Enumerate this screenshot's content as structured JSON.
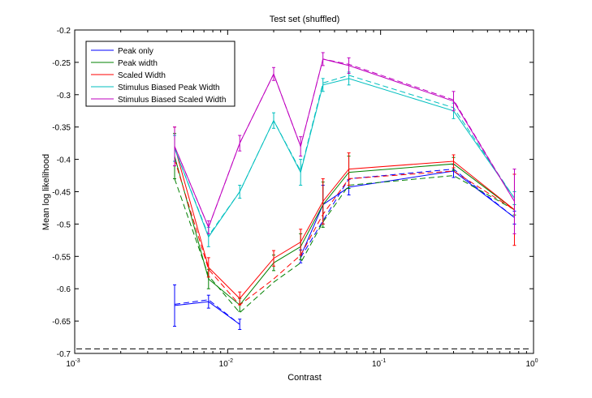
{
  "chart_data": {
    "type": "line",
    "title": "Test set (shuffled)",
    "xlabel": "Contrast",
    "ylabel": "Mean log likelihood",
    "xscale": "log",
    "xlim": [
      0.001,
      1
    ],
    "ylim": [
      -0.7,
      -0.2
    ],
    "xticks": [
      {
        "value": 0.001,
        "base": "10",
        "exp": "-3"
      },
      {
        "value": 0.01,
        "base": "10",
        "exp": "-2"
      },
      {
        "value": 0.1,
        "base": "10",
        "exp": "-1"
      },
      {
        "value": 1,
        "base": "10",
        "exp": "0"
      }
    ],
    "yticks": [
      "-0.2",
      "-0.25",
      "-0.3",
      "-0.35",
      "-0.4",
      "-0.45",
      "-0.5",
      "-0.55",
      "-0.6",
      "-0.65",
      "-0.7"
    ],
    "grid": false,
    "legend_position": "top-left",
    "x": [
      0.0045,
      0.0075,
      0.012,
      0.02,
      0.03,
      0.042,
      0.062,
      0.3,
      0.75
    ],
    "baseline": {
      "value": -0.693,
      "style": "dashed",
      "color": "#000000"
    },
    "series": [
      {
        "name": "Peak only",
        "color": "#0000ff",
        "values": [
          -0.626,
          -0.62,
          -0.655,
          null,
          -0.55,
          -0.47,
          -0.443,
          -0.418,
          -0.49
        ],
        "dashed": [
          -0.624,
          -0.617,
          -0.655,
          null,
          -0.552,
          -0.495,
          -0.43,
          -0.415,
          -0.49
        ],
        "error": [
          0.032,
          0.01,
          0.008,
          null,
          0.01,
          0.03,
          0.012,
          0.01,
          0.01
        ]
      },
      {
        "name": "Peak width",
        "color": "#008000",
        "values": [
          -0.395,
          -0.585,
          -0.625,
          -0.56,
          -0.535,
          -0.47,
          -0.42,
          -0.407,
          -0.478
        ],
        "dashed": [
          -0.43,
          -0.58,
          -0.637,
          -0.59,
          -0.56,
          -0.497,
          -0.44,
          -0.425,
          -0.478
        ],
        "error": [
          0.035,
          0.015,
          0.01,
          0.012,
          0.02,
          0.035,
          0.025,
          0.01,
          0.008
        ]
      },
      {
        "name": "Scaled Width",
        "color": "#ff0000",
        "values": [
          -0.38,
          -0.567,
          -0.615,
          -0.553,
          -0.528,
          -0.465,
          -0.415,
          -0.403,
          -0.478
        ],
        "dashed": [
          -0.4,
          -0.57,
          -0.625,
          -0.585,
          -0.548,
          -0.485,
          -0.43,
          -0.418,
          -0.478
        ],
        "error": [
          0.03,
          0.015,
          0.01,
          0.012,
          0.02,
          0.035,
          0.025,
          0.01,
          0.055
        ]
      },
      {
        "name": "Stimulus Biased Peak Width",
        "color": "#00bfbf",
        "values": [
          -0.383,
          -0.52,
          -0.45,
          -0.34,
          -0.42,
          -0.285,
          -0.275,
          -0.325,
          -0.46
        ],
        "dashed": [
          -0.383,
          -0.518,
          -0.45,
          -0.34,
          -0.418,
          -0.282,
          -0.27,
          -0.32,
          -0.46
        ],
        "error": [
          0.02,
          0.015,
          0.01,
          0.012,
          0.02,
          0.01,
          0.01,
          0.012,
          0.01
        ]
      },
      {
        "name": "Stimulus Biased Scaled Width",
        "color": "#bf00bf",
        "values": [
          -0.38,
          -0.505,
          -0.375,
          -0.268,
          -0.38,
          -0.245,
          -0.255,
          -0.31,
          -0.465
        ],
        "dashed": [
          -0.38,
          -0.505,
          -0.375,
          -0.268,
          -0.38,
          -0.245,
          -0.253,
          -0.308,
          -0.465
        ],
        "error": [
          0.03,
          0.01,
          0.012,
          0.01,
          0.015,
          0.01,
          0.012,
          0.015,
          0.05
        ]
      }
    ]
  }
}
